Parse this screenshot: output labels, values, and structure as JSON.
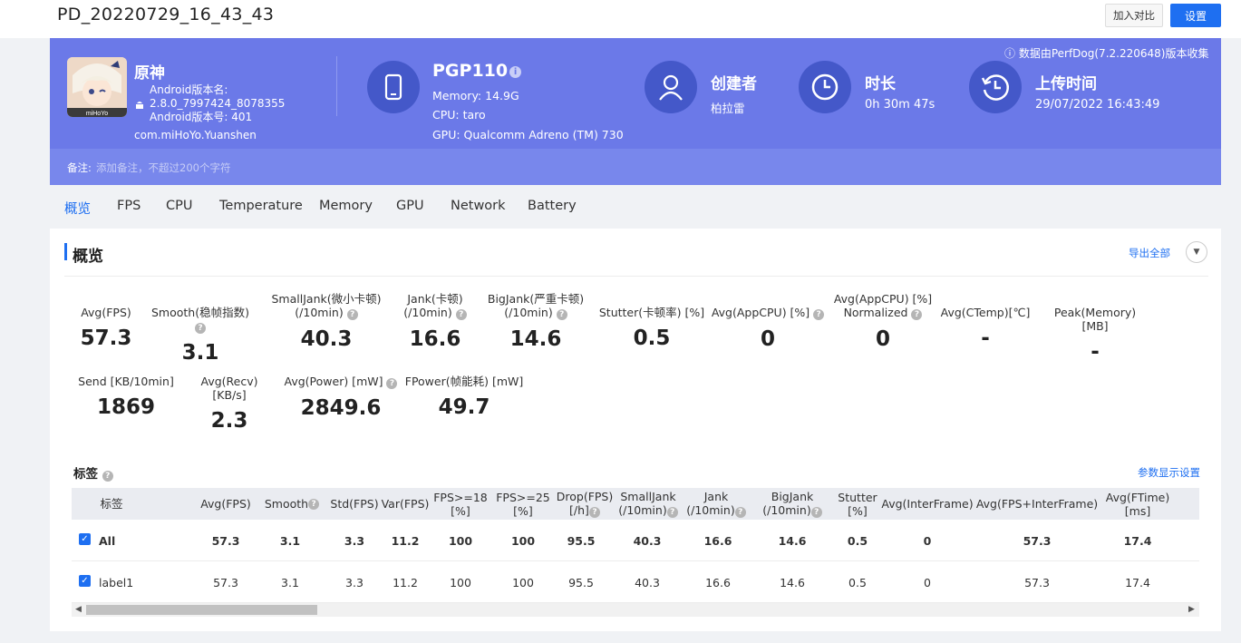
{
  "page": {
    "title": "PD_20220729_16_43_43"
  },
  "top_buttons": {
    "compare": "加入对比",
    "settings": "设置"
  },
  "app": {
    "name": "原神",
    "version_name": "Android版本名: 2.8.0_7997424_8078355",
    "version_code": "Android版本号: 401",
    "package": "com.miHoYo.Yuanshen",
    "icon_caption": "miHoYo"
  },
  "device": {
    "name": "PGP110",
    "memory": "Memory: 14.9G",
    "cpu": "CPU: taro",
    "gpu": "GPU: Qualcomm Adreno (TM) 730"
  },
  "creator": {
    "title": "创建者",
    "value": "柏拉雷"
  },
  "duration": {
    "title": "时长",
    "value": "0h 30m 47s"
  },
  "upload": {
    "title": "上传时间",
    "value": "29/07/2022 16:43:49"
  },
  "source_note": "数据由PerfDog(7.2.220648)版本收集",
  "note": {
    "label": "备注:",
    "placeholder": "添加备注，不超过200个字符"
  },
  "tabs": [
    "概览",
    "FPS",
    "CPU",
    "Temperature",
    "Memory",
    "GPU",
    "Network",
    "Battery"
  ],
  "overview": {
    "title": "概览",
    "export_all": "导出全部",
    "metrics_row1": [
      {
        "label": "Avg(FPS)",
        "value": "57.3"
      },
      {
        "label": "Smooth(稳帧指数)",
        "value": "3.1"
      },
      {
        "label": "SmallJank(微小卡顿)",
        "label2": "(/10min)",
        "value": "40.3"
      },
      {
        "label": "Jank(卡顿)",
        "label2": "(/10min)",
        "value": "16.6"
      },
      {
        "label": "BigJank(严重卡顿)",
        "label2": "(/10min)",
        "value": "14.6"
      },
      {
        "label": "Stutter(卡顿率) [%]",
        "value": "0.5"
      },
      {
        "label": "Avg(AppCPU) [%]",
        "value": "0"
      },
      {
        "label": "Avg(AppCPU) [%]",
        "label2": "Normalized",
        "value": "0"
      },
      {
        "label": "Avg(CTemp)[℃]",
        "value": "-"
      },
      {
        "label": "Peak(Memory) [MB]",
        "value": "-"
      }
    ],
    "metrics_row2": [
      {
        "label": "Send [KB/10min]",
        "value": "1869"
      },
      {
        "label": "Avg(Recv) [KB/s]",
        "value": "2.3"
      },
      {
        "label": "Avg(Power) [mW]",
        "value": "2849.6"
      },
      {
        "label": "FPower(帧能耗) [mW]",
        "value": "49.7"
      }
    ]
  },
  "tags": {
    "title": "标签",
    "param_settings": "参数显示设置",
    "headers": [
      {
        "l1": "标签"
      },
      {
        "l1": "Avg(FPS)"
      },
      {
        "l1": "Smooth"
      },
      {
        "l1": "Std(FPS)"
      },
      {
        "l1": "Var(FPS)"
      },
      {
        "l1": "FPS>=18",
        "l2": "[%]"
      },
      {
        "l1": "FPS>=25",
        "l2": "[%]"
      },
      {
        "l1": "Drop(FPS)",
        "l2": "[/h]"
      },
      {
        "l1": "SmallJank",
        "l2": "(/10min)"
      },
      {
        "l1": "Jank",
        "l2": "(/10min)"
      },
      {
        "l1": "BigJank",
        "l2": "(/10min)"
      },
      {
        "l1": "Stutter",
        "l2": "[%]"
      },
      {
        "l1": "Avg(InterFrame)"
      },
      {
        "l1": "Avg(FPS+InterFrame)"
      },
      {
        "l1": "Avg(FTime)",
        "l2": "[ms]"
      }
    ],
    "rows": [
      {
        "label": "All",
        "cells": [
          "57.3",
          "3.1",
          "3.3",
          "11.2",
          "100",
          "100",
          "95.5",
          "40.3",
          "16.6",
          "14.6",
          "0.5",
          "0",
          "57.3",
          "17.4"
        ]
      },
      {
        "label": "label1",
        "cells": [
          "57.3",
          "3.1",
          "3.3",
          "11.2",
          "100",
          "100",
          "95.5",
          "40.3",
          "16.6",
          "14.6",
          "0.5",
          "0",
          "57.3",
          "17.4"
        ]
      }
    ]
  }
}
